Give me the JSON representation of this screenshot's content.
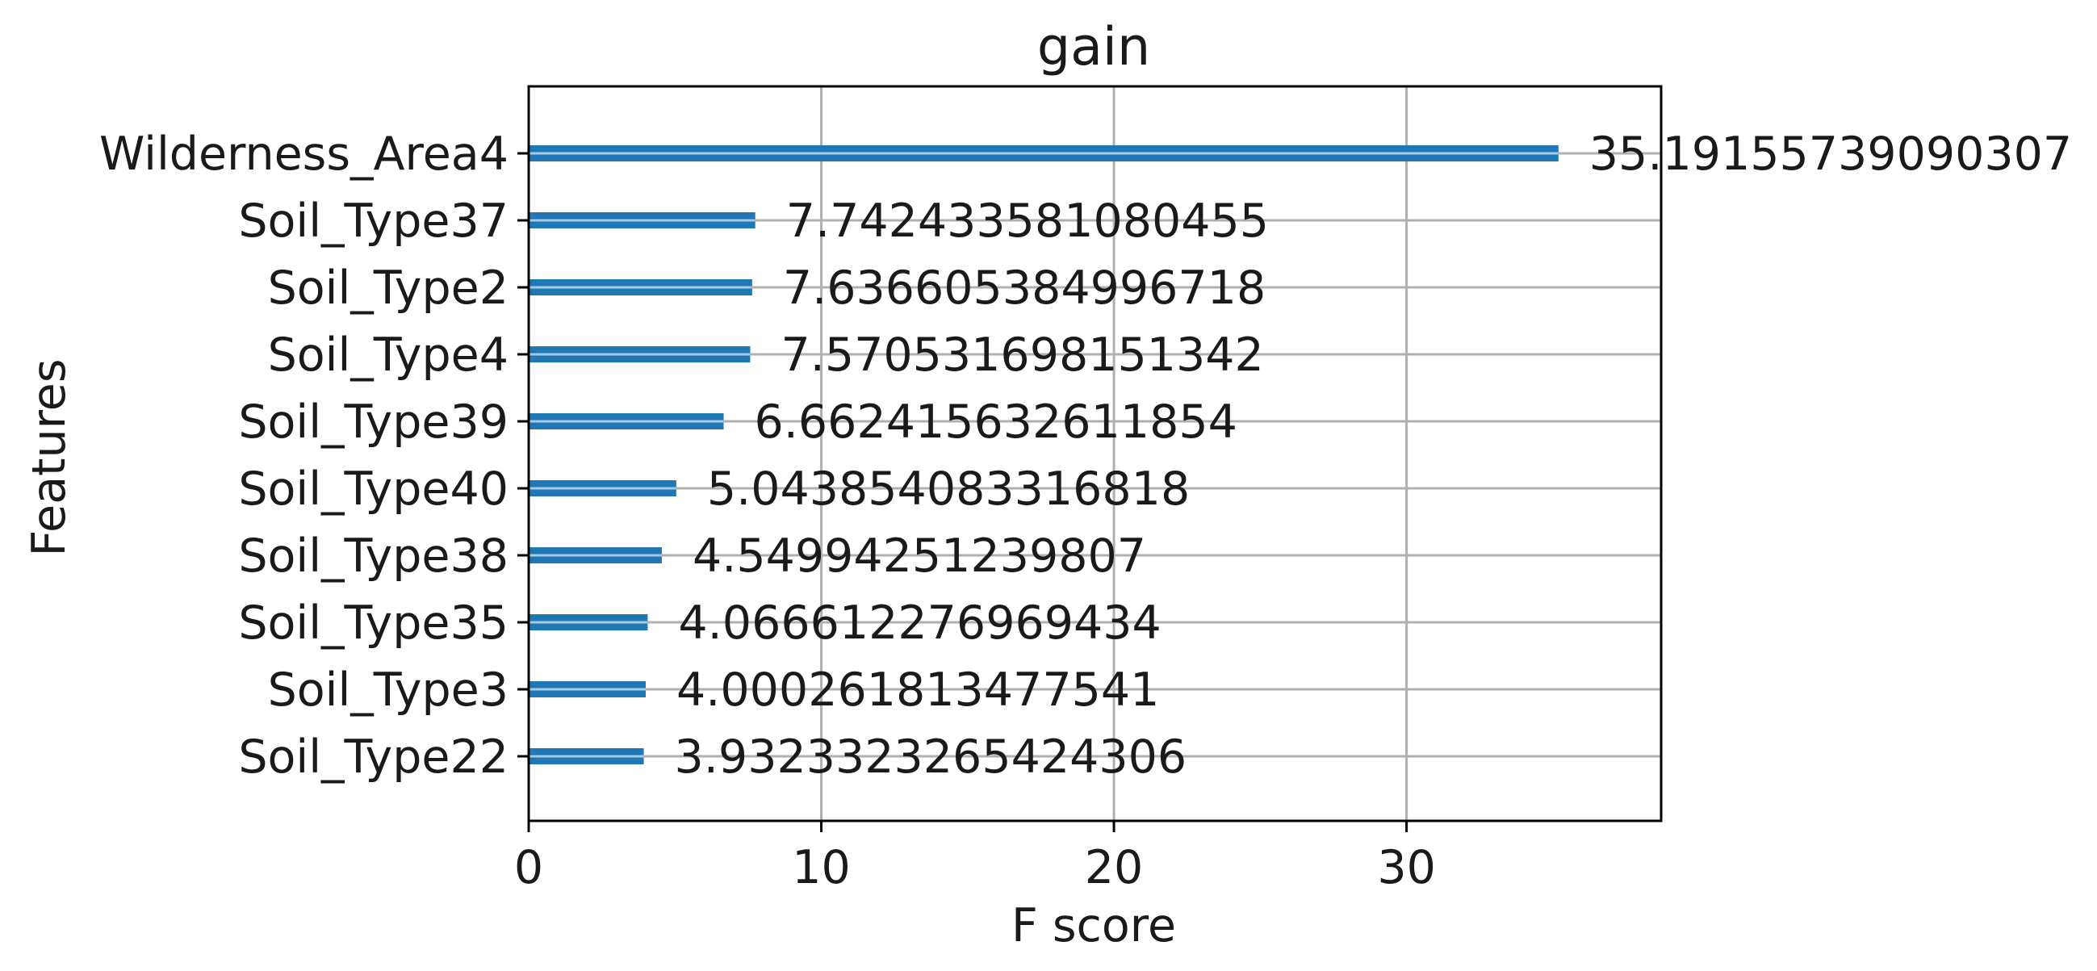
{
  "chart_data": {
    "type": "bar",
    "orientation": "horizontal",
    "title": "gain",
    "xlabel": "F score",
    "ylabel": "Features",
    "xlim": [
      0,
      38.7
    ],
    "xticks": [
      0,
      10,
      20,
      30
    ],
    "grid": true,
    "bar_color": "#1f77b4",
    "categories": [
      "Wilderness_Area4",
      "Soil_Type37",
      "Soil_Type2",
      "Soil_Type4",
      "Soil_Type39",
      "Soil_Type40",
      "Soil_Type38",
      "Soil_Type35",
      "Soil_Type3",
      "Soil_Type22"
    ],
    "values": [
      35.19155739090307,
      7.742433581080455,
      7.636605384996718,
      7.570531698151342,
      6.662415632611854,
      5.043854083316818,
      4.54994251239807,
      4.066612276969434,
      4.000261813477541,
      3.9323323265424306
    ],
    "value_labels": [
      "35.19155739090307",
      "7.742433581080455",
      "7.636605384996718",
      "7.570531698151342",
      "6.662415632611854",
      "5.043854083316818",
      "4.54994251239807",
      "4.066612276969434",
      "4.000261813477541",
      "3.9323323265424306"
    ]
  }
}
